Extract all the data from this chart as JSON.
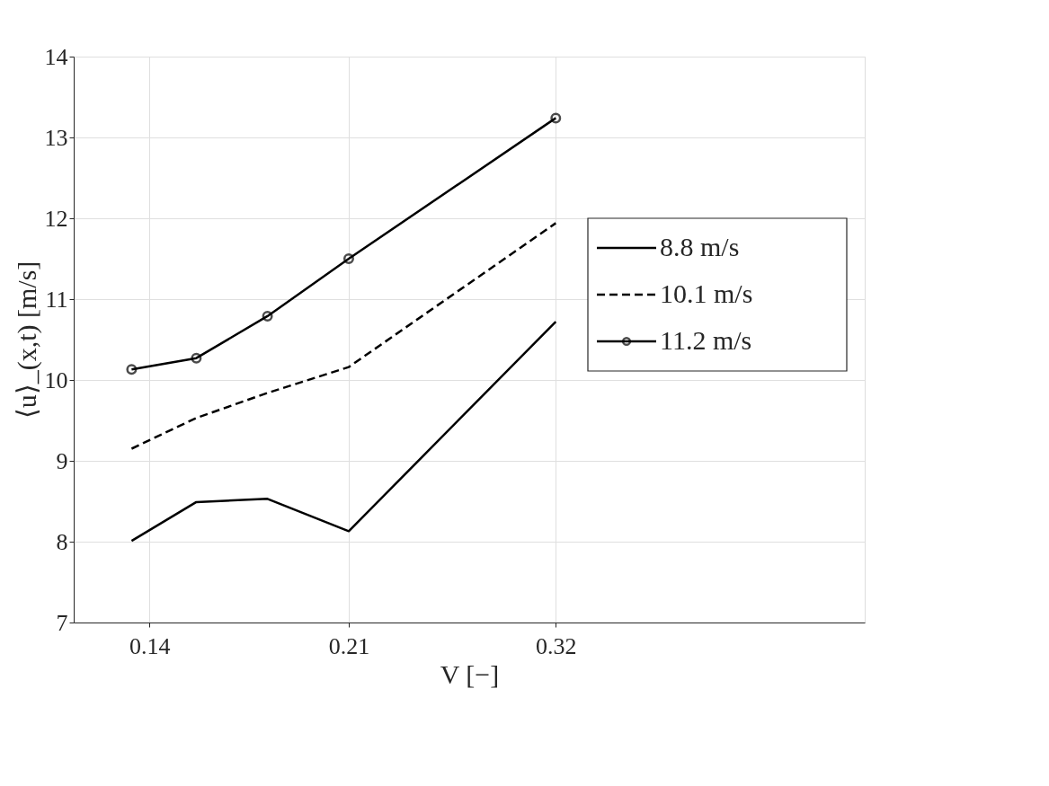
{
  "chart_data": {
    "type": "line",
    "xlabel": "V [−]",
    "ylabel": "⟨u⟩_(x,t) [m/s]",
    "x": [
      0.135,
      0.154,
      0.178,
      0.21,
      0.32
    ],
    "series": [
      {
        "name": "8.8  m/s",
        "color": "#000000",
        "line_style": "solid",
        "marker": "none",
        "values": [
          8.01,
          8.49,
          8.53,
          8.13,
          10.72
        ]
      },
      {
        "name": "10.1 m/s",
        "color": "#000000",
        "line_style": "dashed",
        "marker": "none",
        "values": [
          9.15,
          9.53,
          9.84,
          10.16,
          11.94
        ]
      },
      {
        "name": "11.2 m/s",
        "color": "#000000",
        "line_style": "solid",
        "marker": "circle",
        "values": [
          10.13,
          10.27,
          10.79,
          11.5,
          13.24
        ]
      }
    ],
    "log": "x",
    "xlim": [
      0.12,
      0.6
    ],
    "xticks": [
      0.14,
      0.21,
      0.32
    ],
    "ylim": [
      7,
      14
    ],
    "yticks": [
      7,
      8,
      9,
      10,
      11,
      12,
      13,
      14
    ],
    "grid": true,
    "legend": "right"
  }
}
